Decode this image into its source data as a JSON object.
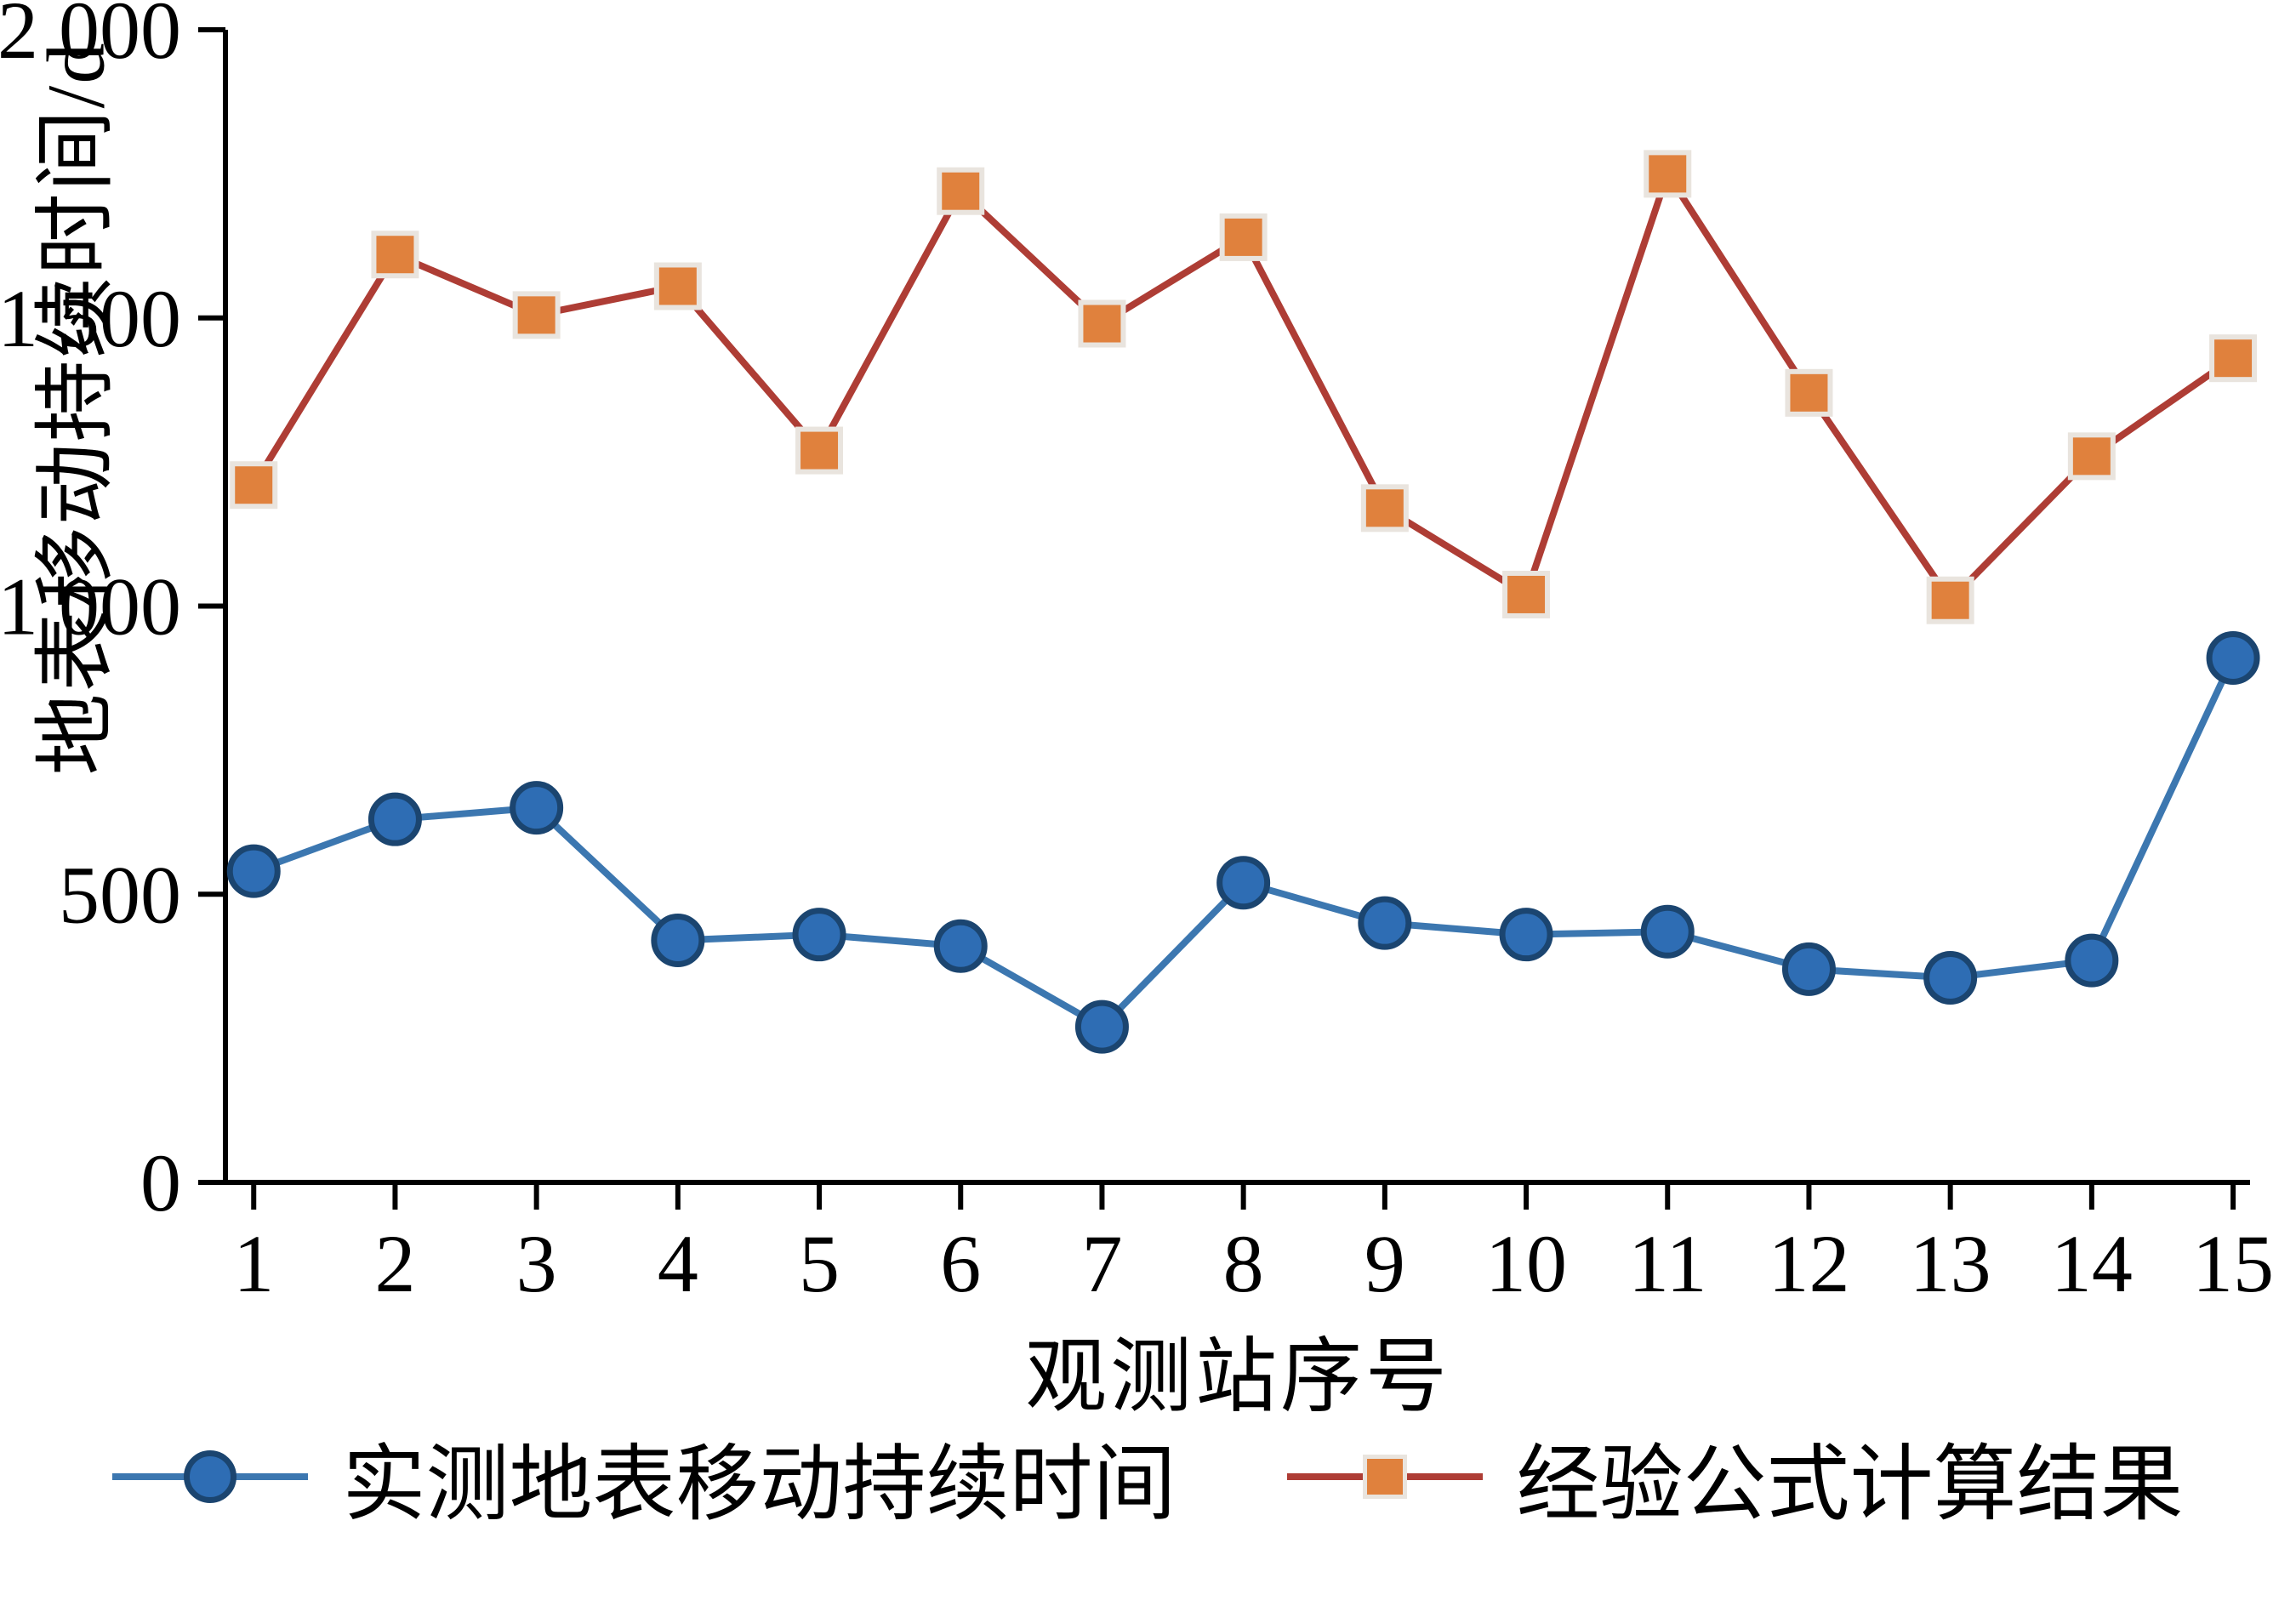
{
  "chart_data": {
    "type": "line",
    "title": "",
    "xlabel": "观测站序号",
    "ylabel": "地表移动持续时间/d",
    "x": [
      1,
      2,
      3,
      4,
      5,
      6,
      7,
      8,
      9,
      10,
      11,
      12,
      13,
      14,
      15
    ],
    "xlim": [
      0.8,
      15.12
    ],
    "ylim": [
      0,
      2000
    ],
    "yticks": [
      0,
      500,
      1000,
      1500,
      2000
    ],
    "ytick_labels": [
      "0",
      "500",
      "1 000",
      "1 500",
      "2 000"
    ],
    "grid": false,
    "legend_position": "bottom",
    "series": [
      {
        "name": "实测地表移动持续时间",
        "marker": "circle",
        "line_color": "#3c77b0",
        "marker_fill": "#2e6db4",
        "marker_stroke": "#1b4570",
        "values": [
          540,
          630,
          650,
          420,
          430,
          410,
          270,
          520,
          450,
          430,
          435,
          370,
          355,
          385,
          910
        ]
      },
      {
        "name": "经验公式计算结果",
        "marker": "square",
        "line_color": "#ae3d35",
        "marker_fill": "#e0813d",
        "marker_stroke": "#e9e4de",
        "values": [
          1210,
          1610,
          1505,
          1555,
          1270,
          1720,
          1490,
          1640,
          1170,
          1020,
          1750,
          1370,
          1010,
          1260,
          1430
        ]
      }
    ]
  }
}
